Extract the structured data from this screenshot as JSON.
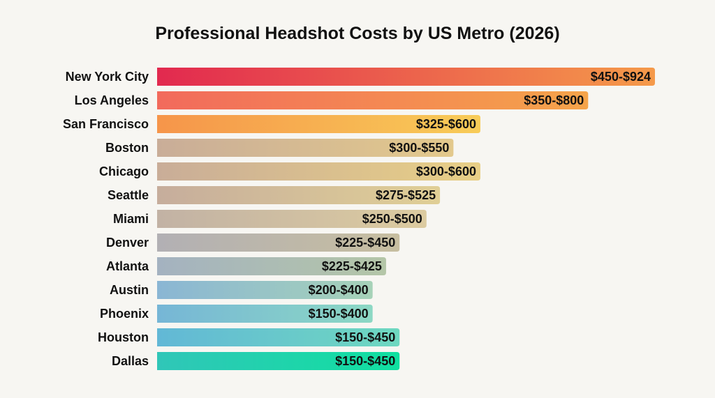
{
  "chart_data": {
    "type": "bar",
    "orientation": "horizontal",
    "title": "Professional Headshot Costs by US Metro (2026)",
    "xlabel": "",
    "ylabel": "",
    "grid": false,
    "categories": [
      "New York City",
      "Los Angeles",
      "San Francisco",
      "Boston",
      "Chicago",
      "Seattle",
      "Miami",
      "Denver",
      "Atlanta",
      "Austin",
      "Phoenix",
      "Houston",
      "Dallas"
    ],
    "values_low": [
      450,
      350,
      325,
      300,
      300,
      275,
      250,
      225,
      225,
      200,
      150,
      150,
      150
    ],
    "values_high": [
      924,
      800,
      600,
      550,
      600,
      525,
      500,
      450,
      425,
      400,
      400,
      450,
      450
    ],
    "data_labels": [
      "$450-$924",
      "$350-$800",
      "$325-$600",
      "$300-$550",
      "$300-$600",
      "$275-$525",
      "$250-$500",
      "$225-$450",
      "$225-$425",
      "$200-$400",
      "$150-$400",
      "$150-$450",
      "$150-$450"
    ],
    "colors": [
      [
        "#e2294f",
        "#f59a4a"
      ],
      [
        "#f26a5c",
        "#f5a44a"
      ],
      [
        "#f6954a",
        "#f8cc58"
      ],
      [
        "#c9ad98",
        "#e3c98c"
      ],
      [
        "#c9ad98",
        "#e8cf86"
      ],
      [
        "#c6ad9c",
        "#e0cf96"
      ],
      [
        "#c2b2a4",
        "#dccba0"
      ],
      [
        "#b2b0b4",
        "#c7bea0"
      ],
      [
        "#a4b2c0",
        "#b4c6a8"
      ],
      [
        "#8ab6d4",
        "#a6d2b8"
      ],
      [
        "#76b6d6",
        "#8cd8c4"
      ],
      [
        "#62b8d6",
        "#6ed8c0"
      ],
      [
        "#30c6b8",
        "#10e0a0"
      ]
    ]
  }
}
